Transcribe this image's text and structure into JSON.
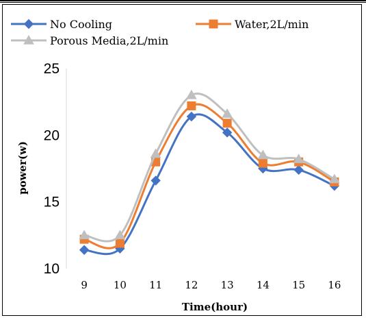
{
  "chart_data": {
    "type": "line",
    "title": "",
    "xlabel": "Time(hour)",
    "ylabel": "power(w)",
    "x": [
      9,
      10,
      11,
      12,
      13,
      14,
      15,
      16
    ],
    "x_tick_labels": [
      "9",
      "10",
      "11",
      "12",
      "13",
      "14",
      "15",
      "16"
    ],
    "y_tick_labels": [
      "10",
      "15",
      "20",
      "25"
    ],
    "ylim": [
      10,
      25
    ],
    "grid": false,
    "legend_position": "top",
    "series": [
      {
        "name": "No Cooling",
        "color": "#4472C4",
        "marker": "diamond",
        "values": [
          11.4,
          11.5,
          16.6,
          21.4,
          20.2,
          17.5,
          17.4,
          16.2
        ]
      },
      {
        "name": "Water,2L/min",
        "color": "#ED7D31",
        "marker": "square",
        "values": [
          12.2,
          11.9,
          18.0,
          22.2,
          20.9,
          17.9,
          18.0,
          16.5
        ]
      },
      {
        "name": "Porous Media,2L/min",
        "color": "#BFBFBF",
        "marker": "triangle",
        "values": [
          12.5,
          12.5,
          18.6,
          23.0,
          21.6,
          18.5,
          18.2,
          16.7
        ]
      }
    ]
  }
}
